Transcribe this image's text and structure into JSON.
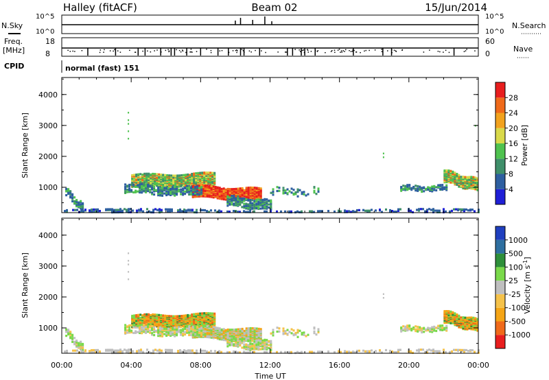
{
  "header": {
    "station": "Halley (fitACF)",
    "beam": "Beam 02",
    "date": "15/Jun/2014"
  },
  "strip_labels": {
    "nsky": "N.Sky",
    "nsky_ticks": [
      "10^5",
      "10^0"
    ],
    "nsearch": "N.Search",
    "nsearch_ticks": [
      "10^5",
      "10^0"
    ],
    "freq_line1": "Freq.",
    "freq_line2": "[MHz]",
    "freq_ticks": [
      "18",
      "8"
    ],
    "nave": "Nave",
    "nave_ticks": [
      "60",
      "0"
    ],
    "cpid": "CPID",
    "mode": "normal (fast) 151"
  },
  "colors": {
    "power": [
      "#1f1fd6",
      "#2e5fa0",
      "#3f8f6a",
      "#4fc24f",
      "#d9d94a",
      "#f2a21e",
      "#f06a1a",
      "#e81e1e"
    ],
    "velocity": [
      "#e81e1e",
      "#f06a1a",
      "#f5a516",
      "#f5c24a",
      "#bfbfbf",
      "#7ad94a",
      "#2e8f3a",
      "#2e6fa0",
      "#1f3fbf"
    ]
  },
  "chart_data": [
    {
      "type": "heatmap",
      "quantity": "Power",
      "ylabel": "Slant Range [km]",
      "colorbar_label": "Power [dB]",
      "colorbar_ticks": [
        "4",
        "8",
        "12",
        "16",
        "20",
        "24",
        "28"
      ],
      "x_ticks": [
        "00:00",
        "04:00",
        "08:00",
        "12:00",
        "16:00",
        "20:00",
        "00:00"
      ],
      "xlim_hours": [
        0,
        24
      ],
      "y_ticks": [
        "1000",
        "2000",
        "3000",
        "4000"
      ],
      "ylim_km": [
        180,
        4550
      ]
    },
    {
      "type": "heatmap",
      "quantity": "Velocity",
      "xlabel": "Time UT",
      "ylabel": "Slant Range [km]",
      "colorbar_label": "Velocity [m s^-1]",
      "colorbar_ticks": [
        "-1000",
        "-500",
        "-100",
        "-25",
        "25",
        "100",
        "500",
        "1000"
      ],
      "x_ticks": [
        "00:00",
        "04:00",
        "08:00",
        "12:00",
        "16:00",
        "20:00",
        "00:00"
      ],
      "xlim_hours": [
        0,
        24
      ],
      "y_ticks": [
        "1000",
        "2000",
        "3000",
        "4000"
      ],
      "ylim_km": [
        180,
        4550
      ]
    }
  ]
}
